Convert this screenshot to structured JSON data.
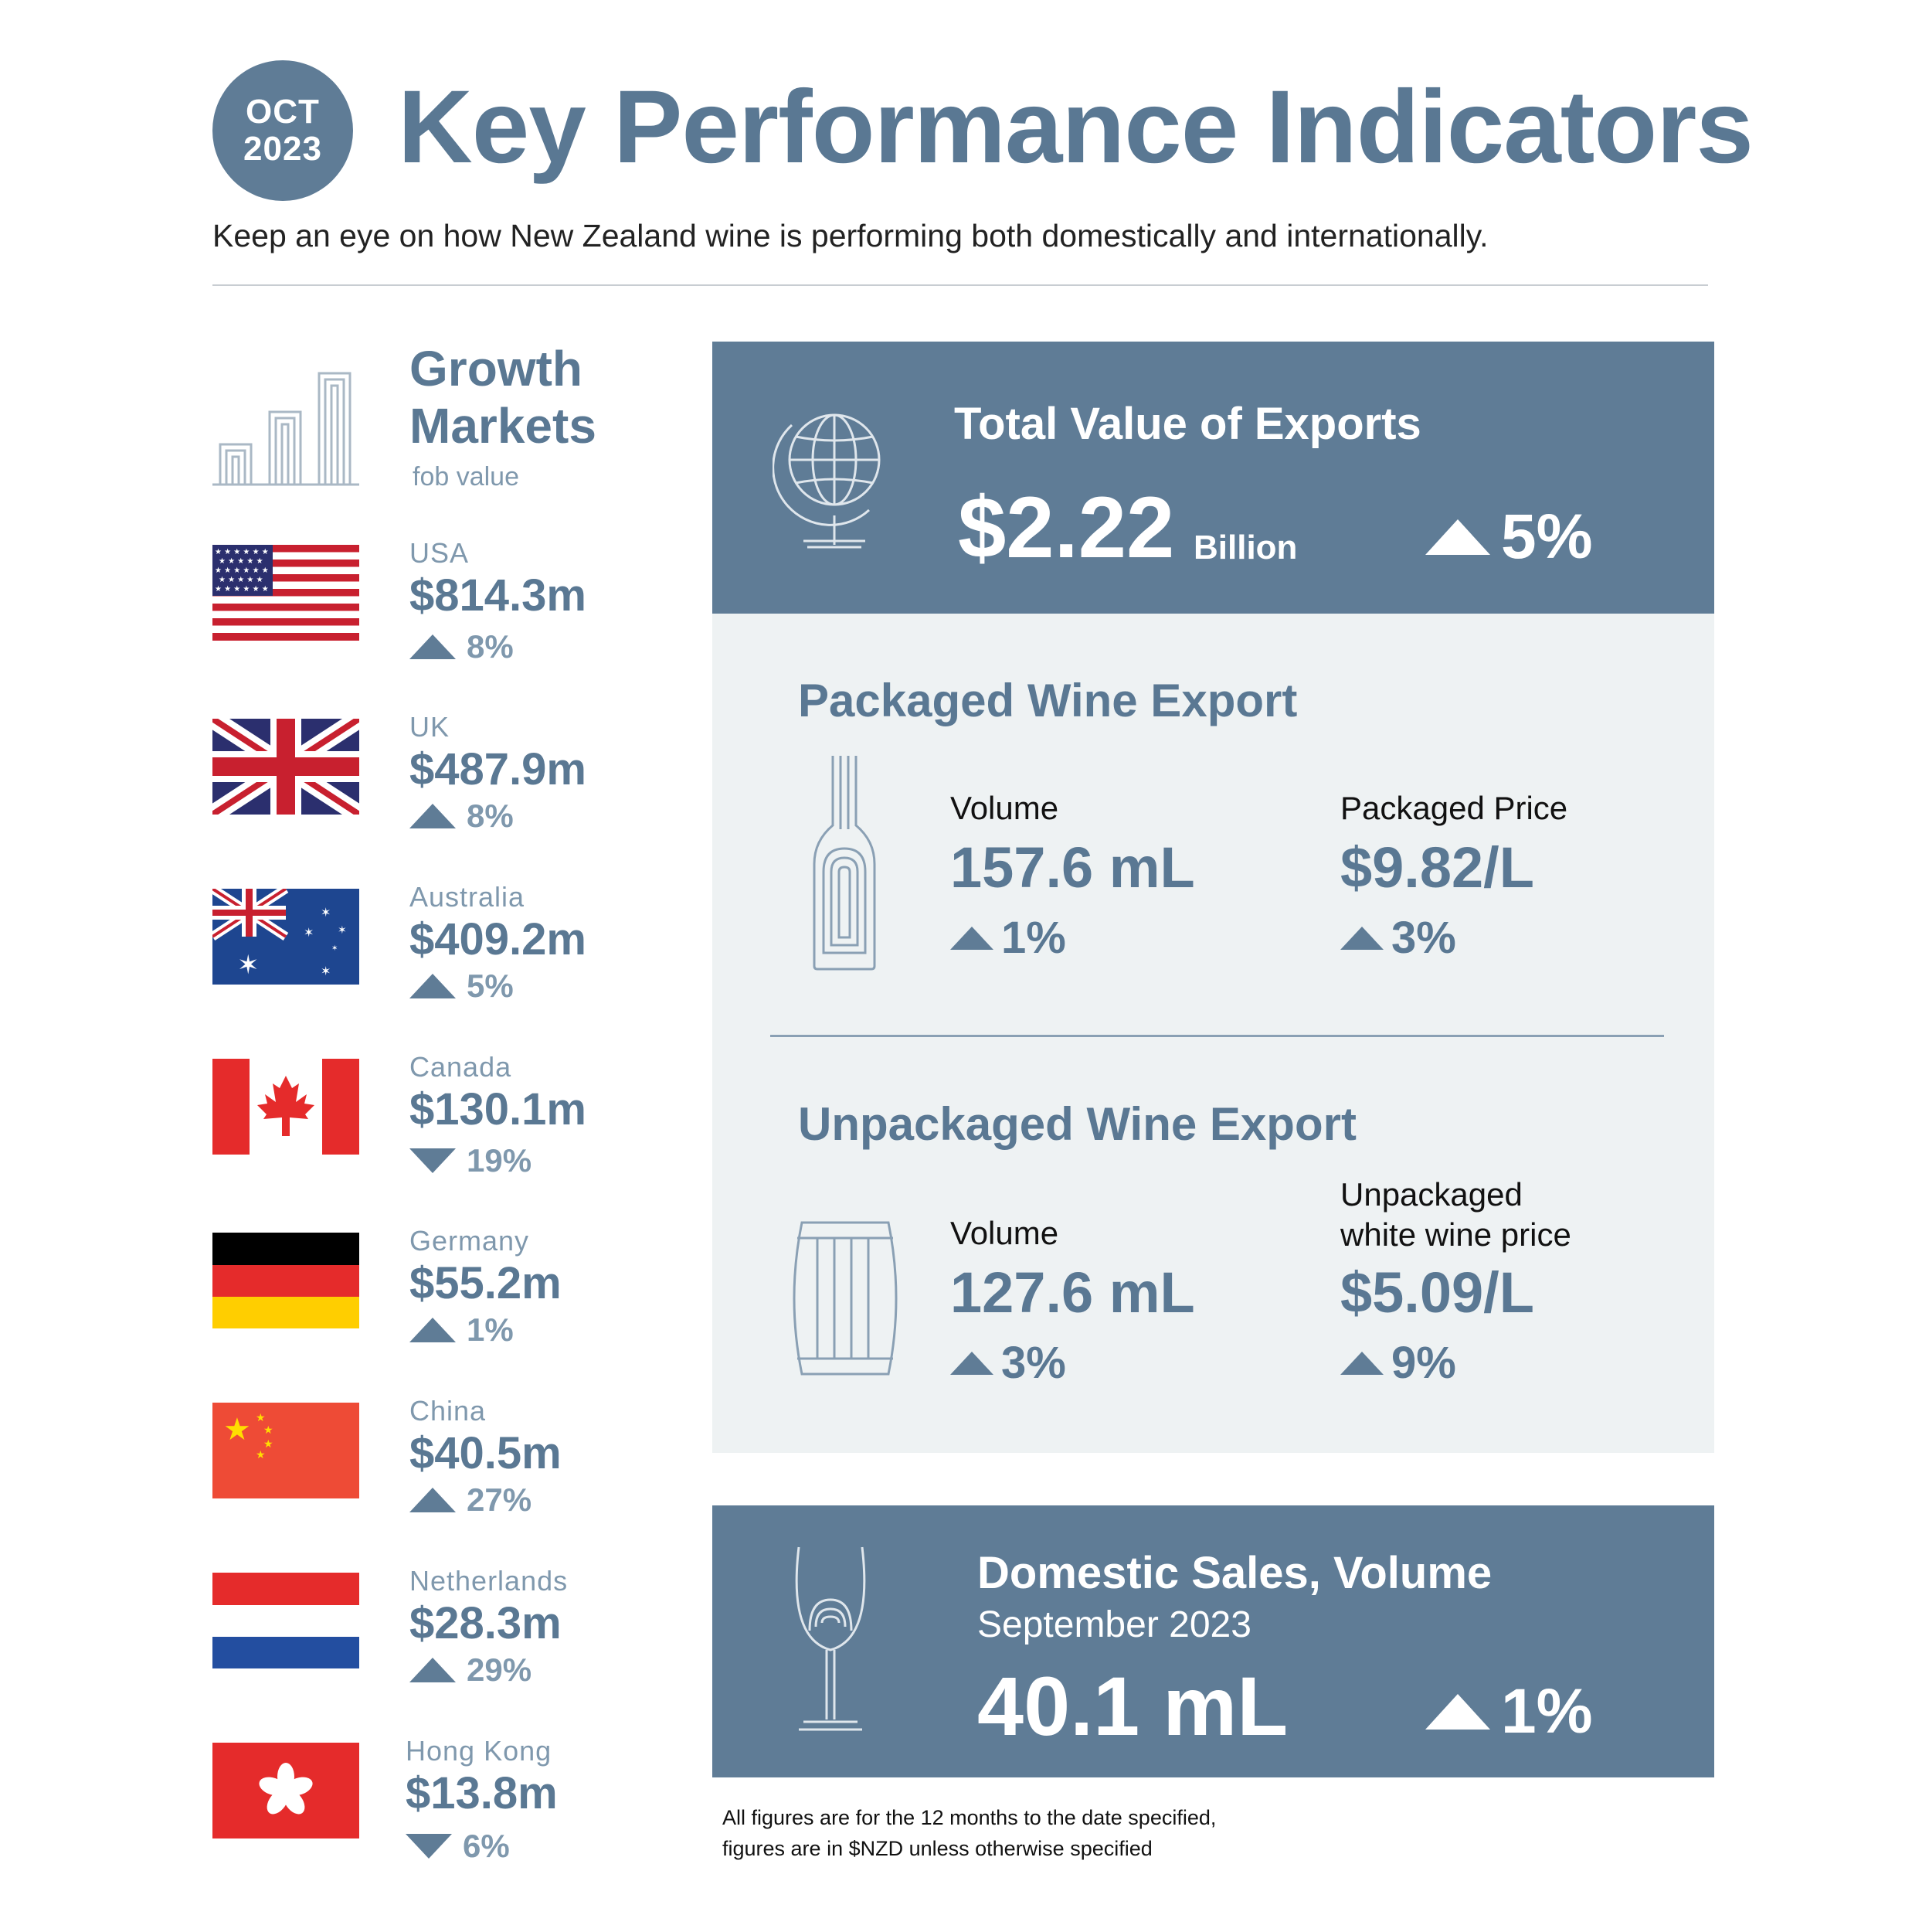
{
  "header": {
    "badge_month": "OCT",
    "badge_year": "2023",
    "title": "Key Performance Indicators",
    "subtitle": "Keep an eye on how New Zealand wine is performing both domestically and internationally."
  },
  "growth_markets": {
    "title_line1": "Growth",
    "title_line2": "Markets",
    "sub": "fob value",
    "markets": [
      {
        "name": "USA",
        "value": "$814.3m",
        "change": "8%",
        "direction": "up",
        "flag_icon": "usa-flag-icon"
      },
      {
        "name": "UK",
        "value": "$487.9m",
        "change": "8%",
        "direction": "up",
        "flag_icon": "uk-flag-icon"
      },
      {
        "name": "Australia",
        "value": "$409.2m",
        "change": "5%",
        "direction": "up",
        "flag_icon": "australia-flag-icon"
      },
      {
        "name": "Canada",
        "value": "$130.1m",
        "change": "19%",
        "direction": "down",
        "flag_icon": "canada-flag-icon"
      },
      {
        "name": "Germany",
        "value": "$55.2m",
        "change": "1%",
        "direction": "up",
        "flag_icon": "germany-flag-icon"
      },
      {
        "name": "China",
        "value": "$40.5m",
        "change": "27%",
        "direction": "up",
        "flag_icon": "china-flag-icon"
      },
      {
        "name": "Netherlands",
        "value": "$28.3m",
        "change": "29%",
        "direction": "up",
        "flag_icon": "netherlands-flag-icon"
      },
      {
        "name": "Hong Kong",
        "value": "$13.8m",
        "change": "6%",
        "direction": "down",
        "flag_icon": "hong-kong-flag-icon"
      }
    ]
  },
  "total_exports": {
    "title": "Total Value of Exports",
    "value": "$2.22",
    "unit": "Billion",
    "change": "5%",
    "icon": "globe-icon"
  },
  "packaged": {
    "title": "Packaged Wine Export",
    "icon": "wine-bottle-icon",
    "volume_label": "Volume",
    "volume_value": "157.6 mL",
    "volume_change": "1%",
    "price_label": "Packaged Price",
    "price_value": "$9.82/L",
    "price_change": "3%"
  },
  "unpackaged": {
    "title": "Unpackaged Wine Export",
    "icon": "barrel-icon",
    "volume_label": "Volume",
    "volume_value": "127.6 mL",
    "volume_change": "3%",
    "price_label_line1": "Unpackaged",
    "price_label_line2": "white wine price",
    "price_value": "$5.09/L",
    "price_change": "9%"
  },
  "domestic": {
    "title": "Domestic Sales, Volume",
    "period": "September 2023",
    "value": "40.1 mL",
    "change": "1%",
    "icon": "wine-glass-icon"
  },
  "footnote": {
    "line1": "All figures are for the 12 months to the date specified,",
    "line2": "figures are in $NZD unless otherwise specified"
  },
  "colors": {
    "accent": "#5f7c96",
    "light_panel": "#eef2f3",
    "text_dark": "#111111"
  }
}
